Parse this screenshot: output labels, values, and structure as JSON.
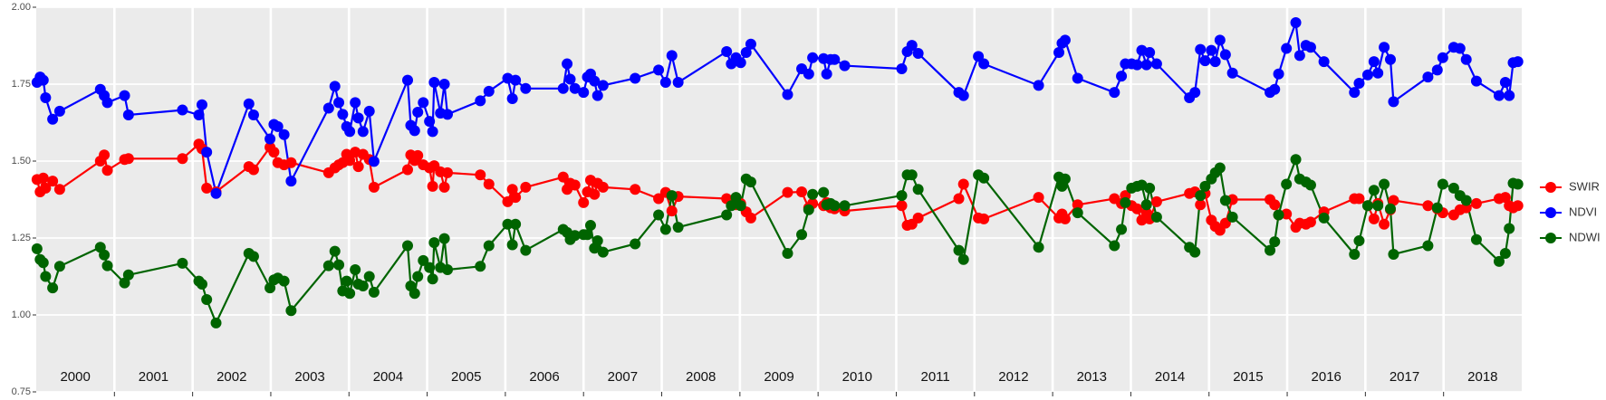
{
  "chart_data": {
    "type": "line",
    "xlim": [
      2000,
      2019
    ],
    "xticks": [
      2001,
      2002,
      2003,
      2004,
      2005,
      2006,
      2007,
      2008,
      2009,
      2010,
      2011,
      2012,
      2013,
      2014,
      2015,
      2016,
      2017,
      2018
    ],
    "ylim": [
      0.75,
      2.0
    ],
    "yticks": [
      0.75,
      {
        "value": 1.0,
        "label": "1.00"
      },
      1.25,
      {
        "value": 1.5,
        "label": "1.50"
      },
      1.75,
      {
        "value": 2.0,
        "label": "2.00"
      }
    ],
    "year_labels": [
      "2000",
      "2001",
      "2002",
      "2003",
      "2004",
      "2005",
      "2006",
      "2007",
      "2008",
      "2009",
      "2010",
      "2011",
      "2012",
      "2013",
      "2014",
      "2015",
      "2016",
      "2017",
      "2018"
    ],
    "grid": true,
    "legend": "right",
    "x": [
      2000.01,
      2000.05,
      2000.09,
      2000.12,
      2000.21,
      2000.3,
      2000.82,
      2000.87,
      2000.91,
      2001.13,
      2001.18,
      2001.87,
      2002.08,
      2002.12,
      2002.18,
      2002.3,
      2002.72,
      2002.78,
      2002.99,
      2003.04,
      2003.09,
      2003.17,
      2003.26,
      2003.74,
      2003.82,
      2003.87,
      2003.92,
      2003.97,
      2004.01,
      2004.08,
      2004.12,
      2004.18,
      2004.26,
      2004.32,
      2004.75,
      2004.79,
      2004.84,
      2004.88,
      2004.95,
      2005.03,
      2005.07,
      2005.09,
      2005.17,
      2005.22,
      2005.26,
      2005.68,
      2005.79,
      2006.03,
      2006.09,
      2006.13,
      2006.26,
      2006.74,
      2006.79,
      2006.83,
      2006.89,
      2007.0,
      2007.05,
      2007.09,
      2007.14,
      2007.18,
      2007.25,
      2007.66,
      2007.96,
      2008.05,
      2008.13,
      2008.21,
      2008.83,
      2008.89,
      2008.95,
      2009.01,
      2009.08,
      2009.14,
      2009.61,
      2009.79,
      2009.88,
      2009.93,
      2010.07,
      2010.11,
      2010.16,
      2010.21,
      2010.34,
      2011.07,
      2011.14,
      2011.2,
      2011.28,
      2011.8,
      2011.86,
      2012.05,
      2012.12,
      2012.82,
      2013.08,
      2013.12,
      2013.16,
      2013.32,
      2013.79,
      2013.88,
      2013.93,
      2014.01,
      2014.08,
      2014.14,
      2014.2,
      2014.24,
      2014.33,
      2014.75,
      2014.82,
      2014.89,
      2014.95,
      2015.03,
      2015.08,
      2015.14,
      2015.21,
      2015.3,
      2015.78,
      2015.84,
      2015.89,
      2015.99,
      2016.11,
      2016.16,
      2016.24,
      2016.3,
      2016.47,
      2016.86,
      2016.92,
      2017.03,
      2017.11,
      2017.16,
      2017.24,
      2017.32,
      2017.36,
      2017.8,
      2017.92,
      2017.99,
      2018.13,
      2018.21,
      2018.29,
      2018.42,
      2018.71,
      2018.79,
      2018.84,
      2018.89,
      2018.95
    ],
    "series": [
      {
        "name": "SWIR",
        "color": "#ff0000",
        "values": [
          1.44,
          1.4,
          1.445,
          1.412,
          1.435,
          1.408,
          1.5,
          1.52,
          1.47,
          1.505,
          1.508,
          1.508,
          1.555,
          1.54,
          1.412,
          1.4,
          1.482,
          1.472,
          1.545,
          1.529,
          1.495,
          1.488,
          1.495,
          1.462,
          1.478,
          1.488,
          1.495,
          1.522,
          1.502,
          1.529,
          1.482,
          1.522,
          1.505,
          1.415,
          1.472,
          1.52,
          1.502,
          1.518,
          1.488,
          1.478,
          1.418,
          1.485,
          1.465,
          1.415,
          1.462,
          1.455,
          1.425,
          1.368,
          1.408,
          1.382,
          1.415,
          1.448,
          1.408,
          1.428,
          1.422,
          1.365,
          1.4,
          1.438,
          1.392,
          1.428,
          1.415,
          1.408,
          1.378,
          1.398,
          1.338,
          1.385,
          1.378,
          1.368,
          1.358,
          1.362,
          1.335,
          1.315,
          1.398,
          1.4,
          1.348,
          1.362,
          1.355,
          1.365,
          1.348,
          1.345,
          1.338,
          1.355,
          1.291,
          1.295,
          1.315,
          1.378,
          1.425,
          1.315,
          1.312,
          1.382,
          1.315,
          1.328,
          1.312,
          1.358,
          1.378,
          1.362,
          1.388,
          1.355,
          1.345,
          1.308,
          1.332,
          1.312,
          1.368,
          1.395,
          1.4,
          1.358,
          1.395,
          1.308,
          1.288,
          1.275,
          1.298,
          1.375,
          1.375,
          1.358,
          1.325,
          1.328,
          1.285,
          1.298,
          1.295,
          1.302,
          1.335,
          1.378,
          1.378,
          1.355,
          1.312,
          1.362,
          1.295,
          1.342,
          1.372,
          1.355,
          1.345,
          1.332,
          1.325,
          1.342,
          1.348,
          1.362,
          1.378,
          1.382,
          1.355,
          1.348,
          1.355
        ]
      },
      {
        "name": "NDVI",
        "color": "#0000ff",
        "values": [
          1.756,
          1.773,
          1.763,
          1.706,
          1.636,
          1.662,
          1.733,
          1.713,
          1.69,
          1.713,
          1.65,
          1.666,
          1.65,
          1.683,
          1.529,
          1.395,
          1.686,
          1.65,
          1.572,
          1.619,
          1.612,
          1.586,
          1.435,
          1.672,
          1.743,
          1.69,
          1.652,
          1.612,
          1.596,
          1.69,
          1.64,
          1.596,
          1.662,
          1.499,
          1.763,
          1.616,
          1.599,
          1.659,
          1.69,
          1.629,
          1.596,
          1.756,
          1.656,
          1.75,
          1.652,
          1.696,
          1.727,
          1.769,
          1.703,
          1.763,
          1.736,
          1.736,
          1.816,
          1.766,
          1.736,
          1.723,
          1.773,
          1.783,
          1.76,
          1.713,
          1.746,
          1.769,
          1.796,
          1.756,
          1.843,
          1.756,
          1.856,
          1.816,
          1.836,
          1.82,
          1.853,
          1.88,
          1.716,
          1.8,
          1.783,
          1.836,
          1.833,
          1.783,
          1.83,
          1.83,
          1.81,
          1.8,
          1.856,
          1.876,
          1.85,
          1.723,
          1.713,
          1.84,
          1.816,
          1.746,
          1.853,
          1.883,
          1.893,
          1.769,
          1.723,
          1.776,
          1.816,
          1.816,
          1.813,
          1.86,
          1.813,
          1.853,
          1.816,
          1.706,
          1.723,
          1.863,
          1.826,
          1.86,
          1.823,
          1.893,
          1.846,
          1.786,
          1.723,
          1.733,
          1.783,
          1.866,
          1.95,
          1.843,
          1.876,
          1.87,
          1.823,
          1.723,
          1.753,
          1.78,
          1.823,
          1.786,
          1.87,
          1.83,
          1.693,
          1.773,
          1.796,
          1.836,
          1.87,
          1.866,
          1.83,
          1.76,
          1.713,
          1.756,
          1.713,
          1.82,
          1.823
        ]
      },
      {
        "name": "NDWI",
        "color": "#006400",
        "values": [
          1.215,
          1.18,
          1.17,
          1.125,
          1.088,
          1.158,
          1.22,
          1.195,
          1.16,
          1.104,
          1.13,
          1.168,
          1.11,
          1.1,
          1.05,
          0.974,
          1.2,
          1.19,
          1.088,
          1.114,
          1.12,
          1.11,
          1.014,
          1.16,
          1.207,
          1.163,
          1.078,
          1.11,
          1.07,
          1.147,
          1.1,
          1.094,
          1.125,
          1.074,
          1.225,
          1.094,
          1.07,
          1.125,
          1.177,
          1.154,
          1.117,
          1.235,
          1.154,
          1.248,
          1.147,
          1.158,
          1.225,
          1.295,
          1.228,
          1.295,
          1.21,
          1.278,
          1.268,
          1.245,
          1.258,
          1.261,
          1.261,
          1.291,
          1.217,
          1.241,
          1.204,
          1.231,
          1.325,
          1.278,
          1.388,
          1.285,
          1.325,
          1.355,
          1.382,
          1.355,
          1.442,
          1.432,
          1.2,
          1.261,
          1.342,
          1.392,
          1.398,
          1.358,
          1.362,
          1.355,
          1.355,
          1.388,
          1.455,
          1.455,
          1.408,
          1.21,
          1.18,
          1.455,
          1.445,
          1.22,
          1.448,
          1.418,
          1.442,
          1.332,
          1.225,
          1.278,
          1.365,
          1.412,
          1.418,
          1.422,
          1.358,
          1.412,
          1.318,
          1.22,
          1.204,
          1.388,
          1.418,
          1.442,
          1.462,
          1.478,
          1.372,
          1.318,
          1.21,
          1.238,
          1.325,
          1.425,
          1.505,
          1.442,
          1.432,
          1.422,
          1.315,
          1.197,
          1.241,
          1.355,
          1.405,
          1.355,
          1.425,
          1.345,
          1.197,
          1.225,
          1.348,
          1.425,
          1.412,
          1.388,
          1.372,
          1.245,
          1.174,
          1.2,
          1.281,
          1.428,
          1.425
        ]
      }
    ]
  }
}
